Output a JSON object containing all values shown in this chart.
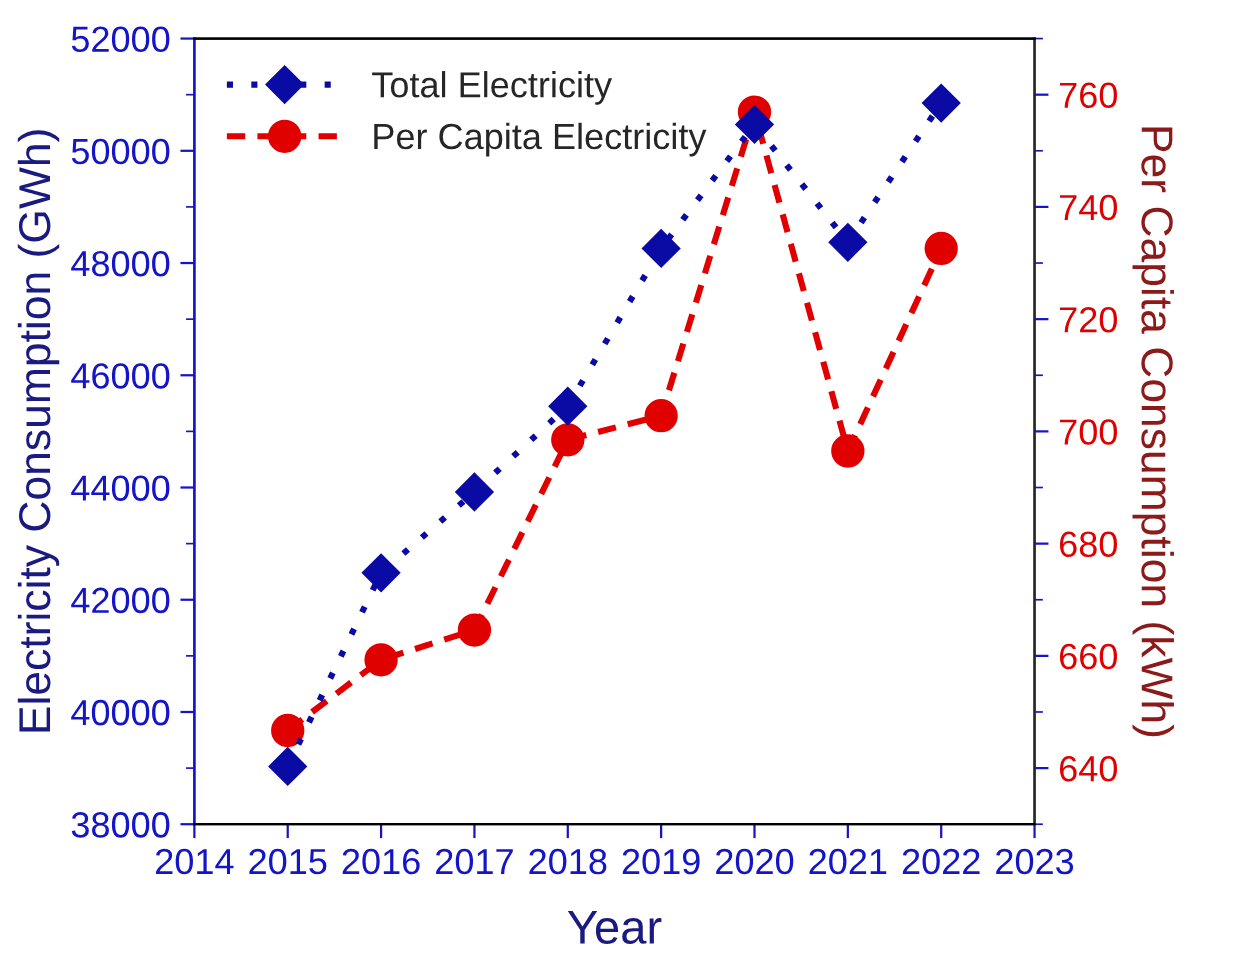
{
  "chart_data": {
    "type": "line",
    "xlabel": "Year",
    "ylabel": "Electricity Consumption (GWh)",
    "y2label": "Per Capita Consumption (kWh)",
    "x": [
      2015,
      2016,
      2017,
      2018,
      2019,
      2020,
      2021,
      2022
    ],
    "series": [
      {
        "name": "Total Electricity",
        "color": "#0a0aa5",
        "marker": "diamond",
        "line_style": "dotted",
        "values": [
          39030,
          42480,
          43920,
          45450,
          48260,
          50470,
          48370,
          50850
        ]
      },
      {
        "name": "Per Capita Electricity",
        "color": "#e00000",
        "marker": "circle",
        "line_style": "dashed",
        "axis": "y2",
        "values": [
          646.7,
          659.3,
          664.6,
          698.5,
          702.8,
          756.9,
          696.5,
          732.6
        ]
      }
    ],
    "xlim": [
      2014,
      2023
    ],
    "xticks": [
      2014,
      2015,
      2016,
      2017,
      2018,
      2019,
      2020,
      2021,
      2022,
      2023
    ],
    "ylim": [
      38000,
      52000
    ],
    "yticks": [
      38000,
      40000,
      42000,
      44000,
      46000,
      48000,
      50000,
      52000
    ],
    "y2lim": [
      630,
      770
    ],
    "y2ticks": [
      640,
      660,
      680,
      700,
      720,
      740,
      760
    ],
    "grid": false,
    "legend": "top left"
  }
}
